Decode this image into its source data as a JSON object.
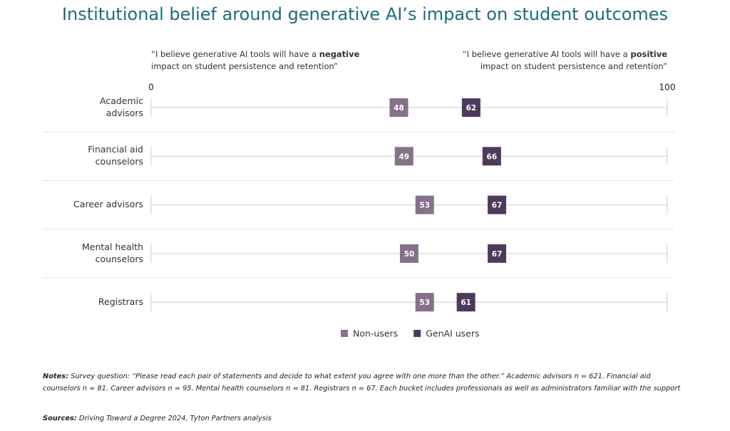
{
  "chart_data": {
    "type": "dot",
    "title": "Institutional belief around generative AI’s impact on student outcomes",
    "annotations": {
      "left": {
        "before": "“I believe generative AI tools will have a ",
        "bold": "negative",
        "after": " impact on student persistence and retention”"
      },
      "right": {
        "before": "“I believe generative AI tools will have a ",
        "bold": "positive",
        "after": " impact on student persistence and retention”"
      }
    },
    "categories": [
      "Academic advisors",
      "Financial aid counselors",
      "Career advisors",
      "Mental health counselors",
      "Registrars"
    ],
    "series": [
      {
        "name": "Non-users",
        "color": "#87708c",
        "values": [
          48,
          49,
          53,
          50,
          53
        ]
      },
      {
        "name": "GenAI users",
        "color": "#4e3a5a",
        "values": [
          62,
          66,
          67,
          67,
          61
        ]
      }
    ],
    "xlim": [
      0,
      100
    ],
    "xticks": [
      0,
      100
    ],
    "notes": {
      "label": "Notes:",
      "text": " Survey question: “Please read each pair of statements and decide to what extent you agree with one more than the other.” Academic advisors n = 621. Financial aid counselors n = 81. Career advisors n = 95. Mental health counselors n = 81. Registrars n = 67. Each bucket includes professionals as well as administrators familiar with the support"
    },
    "sources": {
      "label": "Sources:",
      "text": " Driving Toward a Degree 2024, Tyton Partners analysis"
    }
  }
}
